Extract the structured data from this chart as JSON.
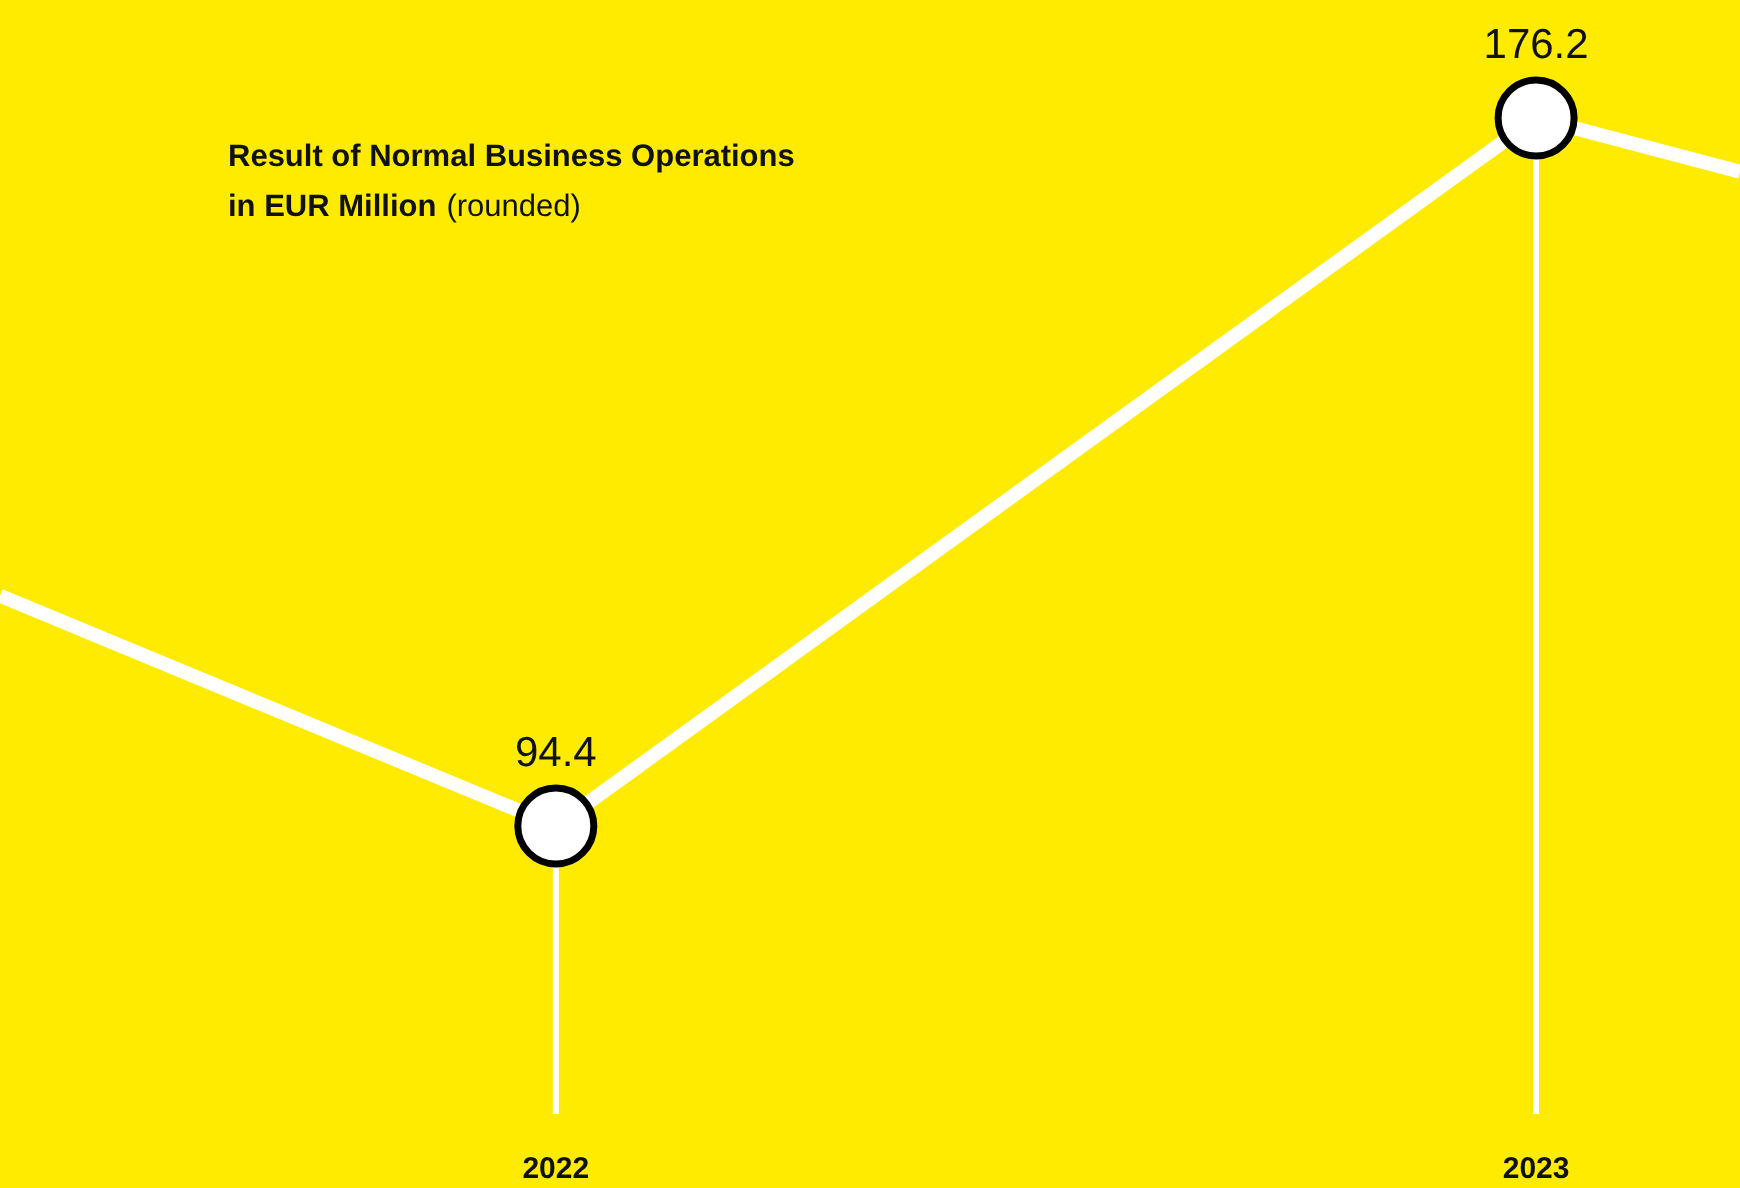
{
  "chart_data": {
    "type": "line",
    "title": "Result of Normal Business Operations in EUR Million",
    "subtitle": "(rounded)",
    "x": [
      2021.433,
      2022,
      2023,
      2023.208
    ],
    "xlim": [
      2021.433,
      2023.208
    ],
    "xticks": [
      2022,
      2023
    ],
    "series": [
      {
        "color": "#ffffff",
        "values": [
          121,
          94.4,
          176.2,
          170
        ],
        "value_labels": [
          null,
          "94.4",
          "176.2",
          null
        ]
      }
    ],
    "marker": "circle",
    "line_style": "solid"
  }
}
